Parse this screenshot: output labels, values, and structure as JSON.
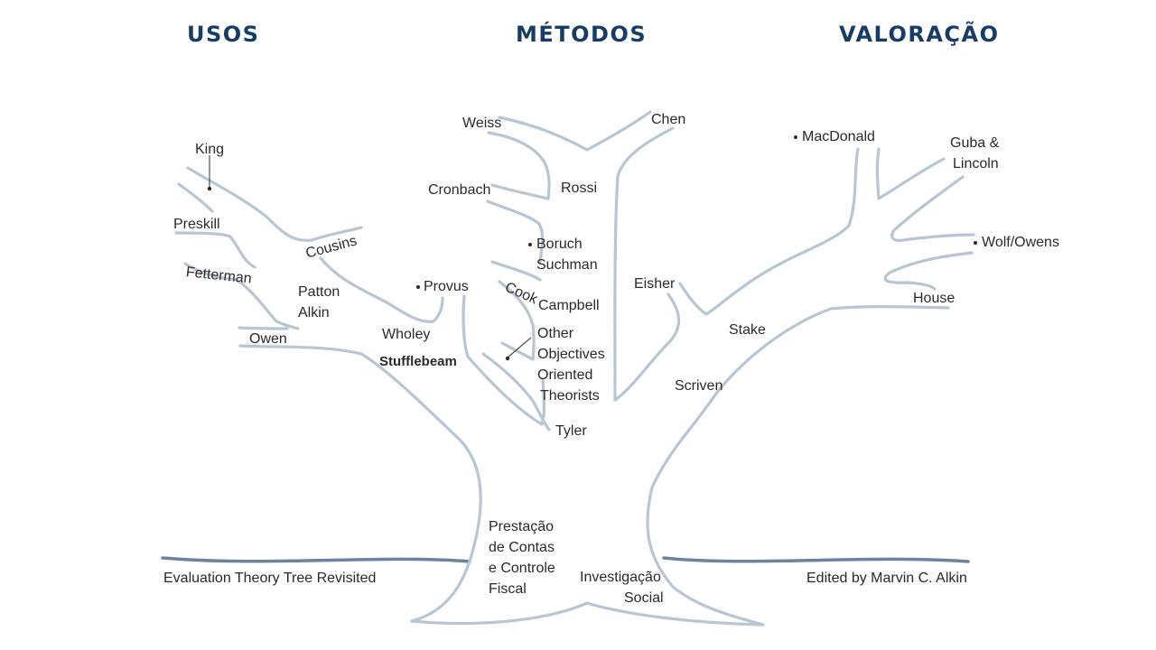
{
  "headings": {
    "usos": "USOS",
    "metodos": "MÉTODOS",
    "valoracao": "VALORAÇÃO"
  },
  "usos": {
    "king": "King",
    "preskill": "Preskill",
    "fetterman": "Fetterman",
    "owen": "Owen",
    "cousins": "Cousins",
    "patton": "Patton",
    "alkin": "Alkin",
    "wholey": "Wholey",
    "stufflebeam": "Stufflebeam",
    "provus": "Provus"
  },
  "metodos": {
    "weiss": "Weiss",
    "chen": "Chen",
    "cronbach": "Cronbach",
    "rossi": "Rossi",
    "boruch": "Boruch",
    "suchman": "Suchman",
    "cook": "Cook",
    "campbell": "Campbell",
    "other_objectives": [
      "Other",
      "Objectives",
      "Oriented",
      "Theorists"
    ],
    "tyler": "Tyler"
  },
  "valoracao": {
    "macdonald": "MacDonald",
    "guba": "Guba &",
    "lincoln": "Lincoln",
    "wolf_owens": "Wolf/Owens",
    "house": "House",
    "eisher": "Eisher",
    "stake": "Stake",
    "scriven": "Scriven"
  },
  "roots": {
    "prestacao": [
      "Prestação",
      "de Contas",
      "e Controle",
      "Fiscal"
    ],
    "investigacao": [
      "Investigação",
      "Social"
    ]
  },
  "footer": {
    "left": "Evaluation Theory Tree Revisited",
    "right": "Edited by Marvin C. Alkin"
  },
  "colors": {
    "heading": "#173d66",
    "branch": "#b8c6d4",
    "ground": "#6d84a0",
    "text": "#2a2a2a"
  }
}
